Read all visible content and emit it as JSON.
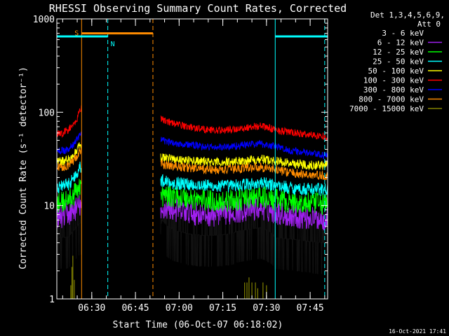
{
  "chart_data": {
    "type": "line",
    "title": "RHESSI Observing Summary Count Rates, Corrected",
    "xlabel": "Start Time (06-Oct-07 06:18:02)",
    "ylabel": "Corrected Count Rate (s⁻¹ detector⁻¹)",
    "x_unit": "minutes after 06:18:02",
    "xlim": [
      0,
      93
    ],
    "ylim": [
      1,
      1000
    ],
    "y_scale": "log",
    "x_ticks": [
      {
        "x": 12,
        "label": "06:30"
      },
      {
        "x": 27,
        "label": "06:45"
      },
      {
        "x": 42,
        "label": "07:00"
      },
      {
        "x": 57,
        "label": "07:15"
      },
      {
        "x": 72,
        "label": "07:30"
      },
      {
        "x": 87,
        "label": "07:45"
      }
    ],
    "y_ticks": [
      {
        "y": 1,
        "label": "1"
      },
      {
        "y": 10,
        "label": "10"
      },
      {
        "y": 100,
        "label": "100"
      },
      {
        "y": 1000,
        "label": "1000"
      }
    ],
    "legend": {
      "placement": "right",
      "header": [
        "Det 1,3,4,5,6,9,",
        "Att 0"
      ]
    },
    "gaps": [
      [
        8.5,
        35.5
      ]
    ],
    "series": [
      {
        "name": "3 - 6 keV",
        "color": "#000000",
        "x": [
          0,
          4,
          6,
          8,
          35.5,
          36,
          37,
          38,
          40,
          45,
          50,
          55,
          60,
          62,
          65,
          70,
          72,
          74,
          75,
          80,
          85,
          90,
          93
        ],
        "y": [
          4.5,
          4.6,
          5.5,
          6.5,
          4.0,
          7.0,
          6.5,
          6.0,
          5.5,
          5.0,
          4.8,
          4.8,
          5.0,
          5.3,
          5.5,
          5.8,
          5.5,
          5.0,
          4.5,
          4.4,
          4.2,
          4.0,
          4.0
        ]
      },
      {
        "name": "6 - 12 keV",
        "color": "#a020f0",
        "x": [
          0,
          4,
          6,
          8,
          35.5,
          37,
          40,
          45,
          50,
          55,
          60,
          65,
          70,
          75,
          80,
          85,
          90,
          93
        ],
        "y": [
          7.5,
          8.0,
          9.0,
          10.0,
          7.0,
          9.5,
          9.0,
          8.5,
          8.0,
          8.0,
          8.5,
          9.0,
          9.5,
          8.5,
          7.8,
          7.5,
          7.3,
          7.2
        ]
      },
      {
        "name": "12 - 25 keV",
        "color": "#00ff00",
        "x": [
          0,
          4,
          6,
          8,
          35.5,
          37,
          40,
          45,
          50,
          55,
          60,
          65,
          70,
          75,
          80,
          85,
          90,
          93
        ],
        "y": [
          10.5,
          11.5,
          13.0,
          17.0,
          12.0,
          13.0,
          12.5,
          12.0,
          11.5,
          11.0,
          11.3,
          11.8,
          12.3,
          11.5,
          11.0,
          10.5,
          10.5,
          10.5
        ]
      },
      {
        "name": "25 - 50 keV",
        "color": "#00ffff",
        "x": [
          0,
          4,
          6,
          8,
          35.5,
          37,
          40,
          45,
          50,
          55,
          60,
          65,
          70,
          75,
          80,
          85,
          90,
          93
        ],
        "y": [
          15.5,
          17.0,
          20.0,
          26.0,
          18.0,
          18.5,
          17.5,
          17.0,
          16.5,
          16.0,
          16.3,
          16.8,
          17.3,
          16.5,
          15.5,
          15.0,
          15.0,
          14.8
        ]
      },
      {
        "name": "50 - 100 keV",
        "color": "#ffff00",
        "x": [
          0,
          4,
          6,
          8,
          35.5,
          37,
          40,
          45,
          50,
          55,
          60,
          65,
          70,
          75,
          80,
          85,
          90,
          93
        ],
        "y": [
          29.0,
          31.0,
          35.0,
          44.0,
          32.0,
          33.0,
          31.5,
          30.5,
          29.5,
          29.0,
          29.5,
          30.5,
          31.5,
          30.0,
          28.5,
          27.5,
          27.0,
          27.0
        ]
      },
      {
        "name": "100 - 300 keV",
        "color": "#ff0000",
        "x": [
          0,
          2,
          4,
          6,
          7,
          8,
          35.5,
          37,
          40,
          45,
          50,
          55,
          60,
          65,
          68,
          70,
          72,
          75,
          80,
          85,
          90,
          93
        ],
        "y": [
          58,
          60,
          65,
          75,
          85,
          110,
          88,
          82,
          76,
          70,
          66,
          64,
          65,
          68,
          71,
          71,
          69,
          65,
          61,
          58,
          56,
          55
        ]
      },
      {
        "name": "300 - 800 keV",
        "color": "#0000ff",
        "x": [
          0,
          4,
          6,
          8,
          35.5,
          37,
          40,
          45,
          50,
          55,
          60,
          65,
          70,
          75,
          80,
          85,
          90,
          93
        ],
        "y": [
          38,
          40,
          46,
          58,
          50,
          49,
          47,
          45,
          43,
          42,
          43,
          45,
          46,
          43,
          39,
          37,
          35,
          34
        ]
      },
      {
        "name": "800 - 7000 keV",
        "color": "#ff8c00",
        "x": [
          0,
          4,
          6,
          8,
          35.5,
          37,
          40,
          45,
          50,
          55,
          60,
          65,
          70,
          75,
          80,
          85,
          90,
          93
        ],
        "y": [
          25.5,
          27.0,
          31.0,
          38.0,
          28.0,
          27.5,
          26.5,
          25.5,
          24.5,
          24.0,
          24.5,
          25.5,
          26.0,
          24.5,
          22.5,
          21.5,
          21.0,
          20.5
        ]
      },
      {
        "name": "7000 - 15000 keV",
        "color": "#808000",
        "spikes": [
          {
            "x": 4.8,
            "y": 1.4
          },
          {
            "x": 5.2,
            "y": 2.2
          },
          {
            "x": 5.5,
            "y": 2.9
          },
          {
            "x": 6.0,
            "y": 1.6
          },
          {
            "x": 64.5,
            "y": 1.5
          },
          {
            "x": 65.3,
            "y": 1.5
          },
          {
            "x": 66.0,
            "y": 1.7
          },
          {
            "x": 67.0,
            "y": 1.5
          },
          {
            "x": 68.2,
            "y": 1.5
          },
          {
            "x": 69.0,
            "y": 1.3
          },
          {
            "x": 70.8,
            "y": 1.5
          },
          {
            "x": 72.0,
            "y": 1.4
          }
        ]
      }
    ],
    "annotations": [
      {
        "label": "S",
        "color": "#ff8c00",
        "x_start": 8.5,
        "x_end": 33,
        "y": 700
      },
      {
        "label": "N",
        "color": "#00ffff",
        "x_start": 0,
        "x_end": 17.5,
        "y": 650
      },
      {
        "label": "",
        "color": "#00ffff",
        "x_start": 75,
        "x_end": 93,
        "y": 650
      }
    ],
    "vlines": [
      {
        "x": 8.5,
        "color": "#ff8c00",
        "style": "solid"
      },
      {
        "x": 33,
        "color": "#ff8c00",
        "style": "dashed"
      },
      {
        "x": 17.5,
        "color": "#00ffff",
        "style": "dashed"
      },
      {
        "x": 75,
        "color": "#00ffff",
        "style": "solid"
      },
      {
        "x": 92,
        "color": "#00ffff",
        "style": "dashed"
      }
    ]
  },
  "footer": {
    "timestamp": "16-Oct-2021 17:41"
  }
}
